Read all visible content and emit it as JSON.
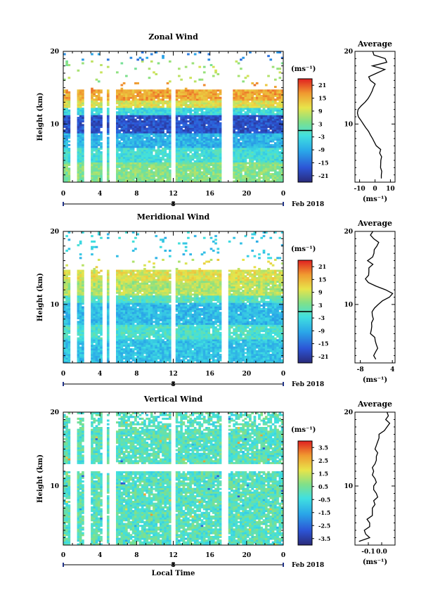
{
  "chart_data": [
    {
      "type": "heatmap",
      "title": "Zonal Wind",
      "ylabel": "Height (km)",
      "ylim": [
        2,
        20
      ],
      "yticks": [
        10,
        20
      ],
      "xlim": [
        0,
        24
      ],
      "xticks": [
        "0",
        "4",
        "8",
        "12",
        "16",
        "20",
        "0"
      ],
      "date_axis": {
        "marker": "8",
        "label": "Feb 2018"
      },
      "colorbar": {
        "unit": "(ms⁻¹)",
        "ticks": [
          "21",
          "15",
          "9",
          "3",
          "-3",
          "-9",
          "-15",
          "-21"
        ],
        "range": [
          -24,
          24
        ],
        "zero_line": true
      },
      "profile": {
        "title": "Average",
        "xlabel": "(ms⁻¹)",
        "xticks": [
          "-10",
          "0",
          "10"
        ],
        "xlim": [
          -13,
          13
        ],
        "yticks": [
          10,
          20
        ],
        "ylim": [
          2,
          20
        ],
        "x": [
          4.1,
          4.1,
          4.4,
          3.6,
          3.7,
          3.8,
          4.3,
          3.0,
          3.7,
          0.8,
          -0.4,
          -1.6,
          -3.0,
          -4.2,
          -6.0,
          -7.6,
          -9.1,
          -10.8,
          -11.4,
          -11.0,
          -9.0,
          -6.5,
          -4.5,
          -3.1,
          -1.9,
          -1.1,
          0.1,
          -3.0,
          -4.1,
          1.1,
          6.4,
          -1.7,
          7.6,
          6.6,
          -0.7,
          -1.5,
          1.0,
          4.0,
          1.6,
          0.0
        ],
        "y": [
          2.5,
          3.0,
          3.5,
          4.0,
          4.5,
          5.0,
          5.5,
          6.0,
          6.5,
          7.0,
          7.5,
          8.0,
          8.5,
          9.0,
          9.5,
          10.0,
          10.5,
          11.0,
          11.5,
          12.0,
          12.5,
          13.0,
          13.5,
          14.0,
          14.5,
          15.0,
          15.5,
          16.0,
          16.5,
          17.0,
          17.5,
          18.0,
          18.5,
          19.0,
          19.5,
          20.0,
          20.5,
          21.0,
          21.5,
          22.0
        ]
      }
    },
    {
      "type": "heatmap",
      "title": "Meridional Wind",
      "ylabel": "Height (km)",
      "ylim": [
        2,
        20
      ],
      "yticks": [
        10,
        20
      ],
      "xlim": [
        0,
        24
      ],
      "xticks": [
        "0",
        "4",
        "8",
        "12",
        "16",
        "20",
        "0"
      ],
      "date_axis": {
        "marker": "8",
        "label": "Feb 2018"
      },
      "colorbar": {
        "unit": "(ms⁻¹)",
        "ticks": [
          "21",
          "15",
          "9",
          "3",
          "-3",
          "-9",
          "-15",
          "-21"
        ],
        "range": [
          -24,
          24
        ],
        "zero_line": true
      },
      "profile": {
        "title": "Average",
        "xlabel": "(ms⁻¹)",
        "xticks": [
          "-8",
          "4"
        ],
        "xlim": [
          -10,
          5
        ],
        "yticks": [
          10,
          20
        ],
        "ylim": [
          2,
          20
        ],
        "x": [
          -2.2,
          -3.0,
          -2.3,
          -1.5,
          -2.0,
          -2.4,
          -2.6,
          -4.2,
          -3.9,
          -3.7,
          -3.8,
          -3.1,
          -3.5,
          -3.6,
          -2.7,
          -1.3,
          0.3,
          2.9,
          4.1,
          1.5,
          -2.1,
          -5.0,
          -6.1,
          -4.9,
          -4.8,
          -4.8,
          -3.3,
          -5.3,
          -3.4,
          -2.9,
          -2.8,
          -1.8,
          -1.1,
          -3.0,
          -4.2,
          -3.3,
          -3.9,
          -3.4,
          -5.4,
          -5.6
        ],
        "y": [
          2.5,
          3.0,
          3.5,
          4.0,
          4.5,
          5.0,
          5.5,
          6.0,
          6.5,
          7.0,
          7.5,
          8.0,
          8.5,
          9.0,
          9.5,
          10.0,
          10.5,
          11.0,
          11.5,
          12.0,
          12.5,
          13.0,
          13.5,
          14.0,
          14.5,
          15.0,
          15.5,
          16.0,
          16.5,
          17.0,
          17.5,
          18.0,
          18.5,
          19.0,
          19.5,
          20.0,
          20.5,
          21.0,
          21.5,
          22.0
        ]
      }
    },
    {
      "type": "heatmap",
      "title": "Vertical Wind",
      "xlabel": "Local Time",
      "ylabel": "Height (km)",
      "ylim": [
        2,
        20
      ],
      "yticks": [
        10,
        20
      ],
      "xlim": [
        0,
        24
      ],
      "xticks": [
        "0",
        "4",
        "8",
        "12",
        "16",
        "20",
        "0"
      ],
      "date_axis": {
        "marker": "8",
        "label": "Feb 2018"
      },
      "colorbar": {
        "unit": "(ms⁻¹)",
        "ticks": [
          "3.5",
          "2.5",
          "1.5",
          "0.5",
          "-0.5",
          "-1.5",
          "-2.5",
          "-3.5"
        ],
        "range": [
          -4,
          4
        ],
        "zero_line": false
      },
      "profile": {
        "title": "Average",
        "xlabel": "(ms⁻¹)",
        "xticks": [
          "-0.1",
          "0.0"
        ],
        "xlim": [
          -0.2,
          0.1
        ],
        "yticks": [
          10,
          20
        ],
        "ylim": [
          2,
          20
        ],
        "x": [
          -0.17,
          -0.09,
          -0.12,
          -0.13,
          -0.09,
          -0.09,
          -0.11,
          -0.07,
          -0.07,
          -0.07,
          -0.05,
          -0.06,
          -0.03,
          -0.04,
          -0.06,
          -0.06,
          -0.04,
          -0.05,
          -0.07,
          -0.06,
          -0.07,
          -0.05,
          -0.04,
          -0.04,
          -0.03,
          -0.05,
          -0.04,
          -0.03,
          -0.02,
          -0.02,
          0.02,
          0.04,
          0.06,
          0.03,
          0.05,
          0.04,
          0.05,
          0.06,
          0.07,
          0.05
        ],
        "y": [
          2.5,
          3.0,
          3.5,
          4.0,
          4.5,
          5.0,
          5.5,
          6.0,
          6.5,
          7.0,
          7.5,
          8.0,
          8.5,
          9.0,
          9.5,
          10.0,
          10.5,
          11.0,
          11.5,
          12.0,
          12.5,
          13.0,
          13.5,
          14.0,
          14.5,
          15.0,
          15.5,
          16.0,
          16.5,
          17.0,
          17.5,
          18.0,
          18.5,
          19.0,
          19.5,
          20.0,
          20.5,
          21.0,
          21.5,
          22.0
        ]
      }
    }
  ]
}
